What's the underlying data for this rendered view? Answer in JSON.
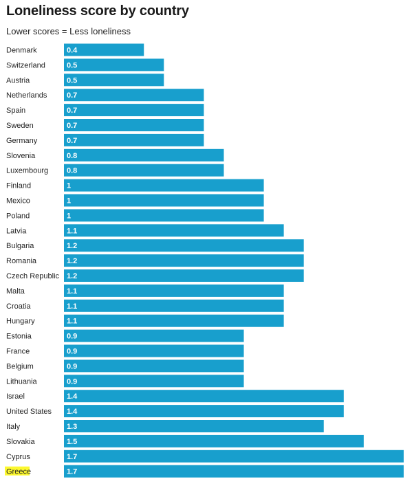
{
  "chart_data": {
    "type": "bar",
    "orientation": "horizontal",
    "title": "Loneliness score by country",
    "subtitle": "Lower scores = Less loneliness",
    "xlabel": "",
    "ylabel": "",
    "xlim": [
      0,
      1.7
    ],
    "grid": false,
    "legend": "none",
    "bar_color": "#189fcd",
    "highlight_color": "#fcf82f",
    "highlighted_category": "Greece",
    "categories": [
      "Denmark",
      "Switzerland",
      "Austria",
      "Netherlands",
      "Spain",
      "Sweden",
      "Germany",
      "Slovenia",
      "Luxembourg",
      "Finland",
      "Mexico",
      "Poland",
      "Latvia",
      "Bulgaria",
      "Romania",
      "Czech Republic",
      "Malta",
      "Croatia",
      "Hungary",
      "Estonia",
      "France",
      "Belgium",
      "Lithuania",
      "Israel",
      "United States",
      "Italy",
      "Slovakia",
      "Cyprus",
      "Greece"
    ],
    "values": [
      0.4,
      0.5,
      0.5,
      0.7,
      0.7,
      0.7,
      0.7,
      0.8,
      0.8,
      1,
      1,
      1,
      1.1,
      1.2,
      1.2,
      1.2,
      1.1,
      1.1,
      1.1,
      0.9,
      0.9,
      0.9,
      0.9,
      1.4,
      1.4,
      1.3,
      1.5,
      1.7,
      1.7
    ]
  }
}
